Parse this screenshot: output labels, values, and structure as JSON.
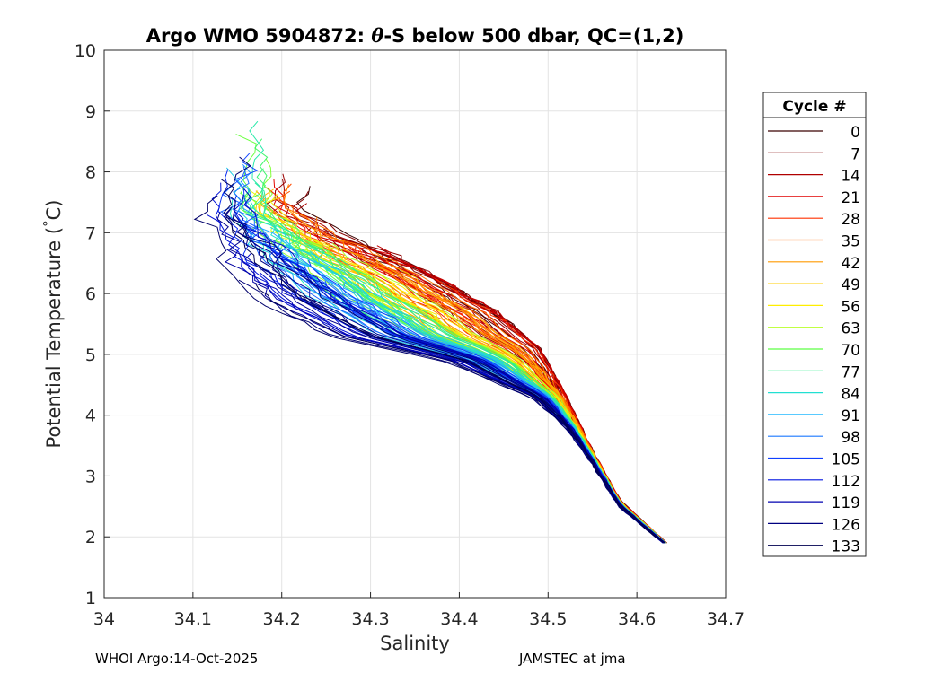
{
  "chart_data": {
    "type": "line",
    "title_parts": {
      "prefix": "Argo WMO 5904872: ",
      "theta": "θ",
      "suffix": "-S below 500 dbar,  QC=(1,2)"
    },
    "xlabel": "Salinity",
    "ylabel_parts": {
      "main": "Potential Temperature (",
      "degree": "°",
      "unit": "C)"
    },
    "xlim": [
      34.0,
      34.7
    ],
    "ylim": [
      1,
      10
    ],
    "xticks": [
      34.0,
      34.1,
      34.2,
      34.3,
      34.4,
      34.5,
      34.6,
      34.7
    ],
    "xtick_labels": [
      "34",
      "34.1",
      "34.2",
      "34.3",
      "34.4",
      "34.5",
      "34.6",
      "34.7"
    ],
    "yticks": [
      1,
      2,
      3,
      4,
      5,
      6,
      7,
      8,
      9,
      10
    ],
    "ytick_labels": [
      "1",
      "2",
      "3",
      "4",
      "5",
      "6",
      "7",
      "8",
      "9",
      "10"
    ],
    "grid": true,
    "legend_title": "Cycle #",
    "legend_position": "right",
    "legend_entries": [
      "0",
      "7",
      "14",
      "21",
      "28",
      "35",
      "42",
      "49",
      "56",
      "63",
      "70",
      "77",
      "84",
      "91",
      "98",
      "105",
      "112",
      "119",
      "126",
      "133"
    ],
    "series_colors": [
      "#3a0000",
      "#800000",
      "#b00000",
      "#e00000",
      "#ff3000",
      "#ff6a00",
      "#ff9a00",
      "#ffcc00",
      "#ffee00",
      "#b8ff28",
      "#5cff44",
      "#2ef08c",
      "#22e0d2",
      "#22b8ff",
      "#1c78ff",
      "#1040ff",
      "#0014e0",
      "#0000b0",
      "#000080",
      "#000050"
    ],
    "series_template": {
      "cycles": [
        0,
        133
      ],
      "description": "theta-S profiles; shared deep end near S=34.63, theta=1.9",
      "envelope_warm": [
        [
          34.632,
          1.9
        ],
        [
          34.58,
          2.6
        ],
        [
          34.55,
          3.4
        ],
        [
          34.52,
          4.3
        ],
        [
          34.49,
          5.1
        ],
        [
          34.44,
          5.7
        ],
        [
          34.37,
          6.3
        ],
        [
          34.28,
          6.9
        ],
        [
          34.22,
          7.4
        ]
      ],
      "envelope_cold": [
        [
          34.63,
          1.9
        ],
        [
          34.58,
          2.5
        ],
        [
          34.55,
          3.2
        ],
        [
          34.52,
          3.8
        ],
        [
          34.48,
          4.3
        ],
        [
          34.38,
          4.9
        ],
        [
          34.25,
          5.3
        ],
        [
          34.17,
          5.9
        ],
        [
          34.13,
          6.5
        ],
        [
          34.11,
          7.3
        ],
        [
          34.12,
          8.3
        ]
      ]
    }
  },
  "footer": {
    "left": "WHOI Argo:14-Oct-2025",
    "right": "JAMSTEC at jma"
  }
}
